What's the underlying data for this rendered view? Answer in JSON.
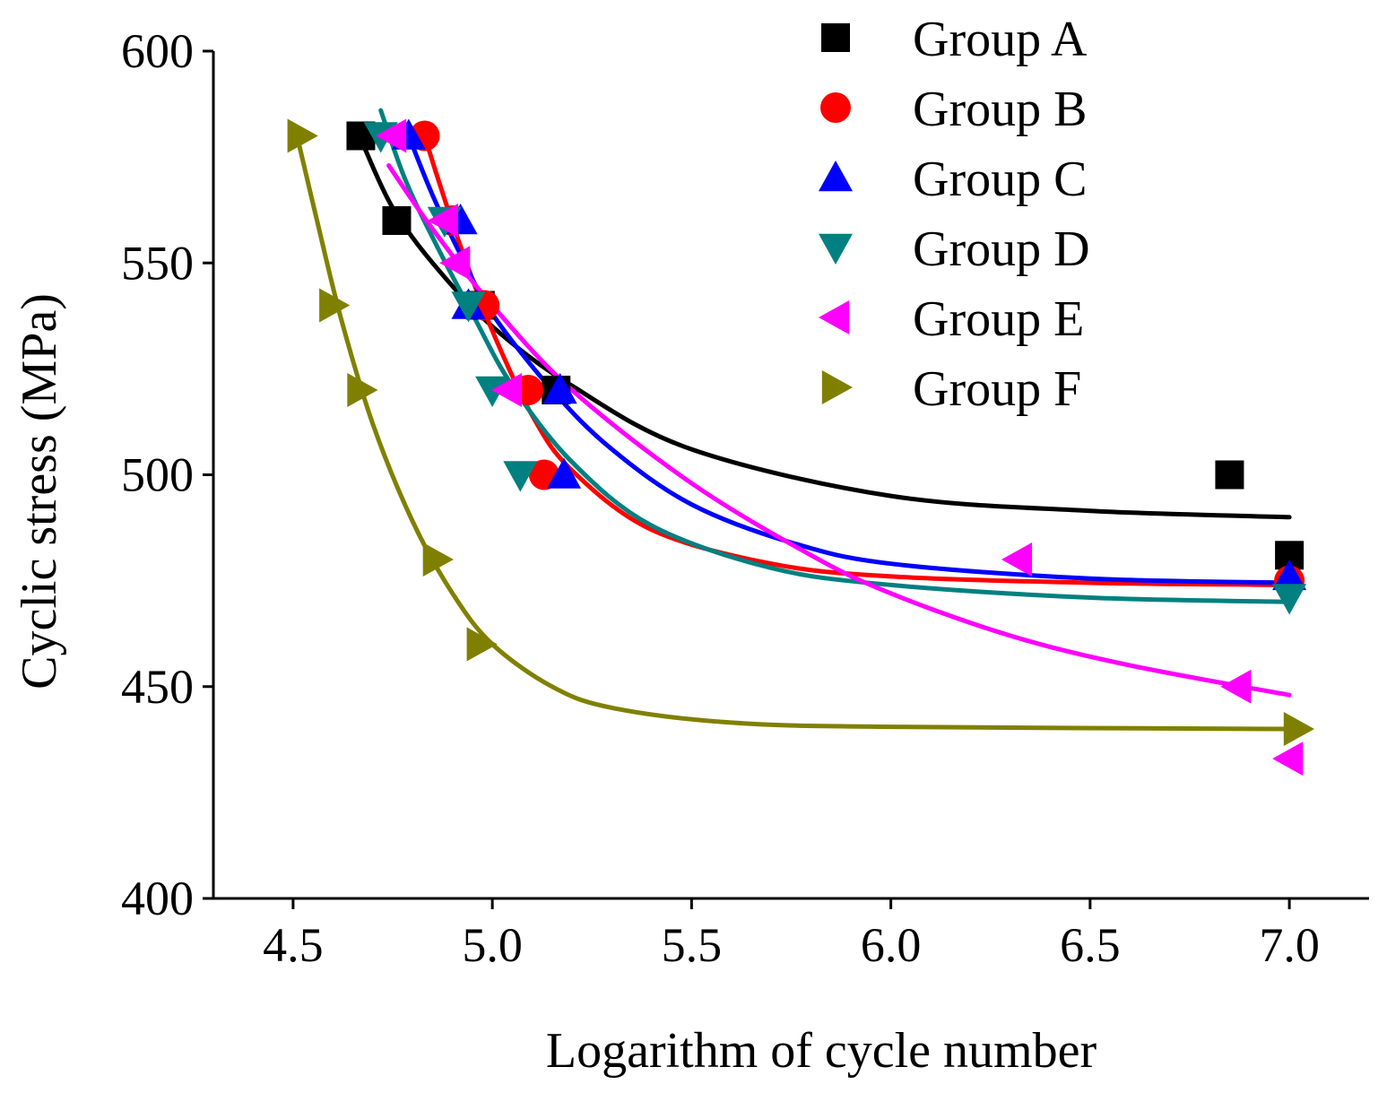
{
  "chart_data": {
    "type": "scatter",
    "title": "",
    "xlabel": "Logarithm of cycle number",
    "ylabel": "Cyclic stress (MPa)",
    "xlim": [
      4.3,
      7.2
    ],
    "ylim": [
      400,
      600
    ],
    "xticks": [
      4.5,
      5.0,
      5.5,
      6.0,
      6.5,
      7.0
    ],
    "xtick_labels": [
      "4.5",
      "5.0",
      "5.5",
      "6.0",
      "6.5",
      "7.0"
    ],
    "yticks": [
      400,
      450,
      500,
      550,
      600
    ],
    "ytick_labels": [
      "400",
      "450",
      "500",
      "550",
      "600"
    ],
    "legend_position": "top-right",
    "series": [
      {
        "name": "Group A",
        "marker": "square",
        "color": "#000000",
        "points": [
          [
            4.67,
            580
          ],
          [
            4.76,
            560
          ],
          [
            4.97,
            540
          ],
          [
            5.16,
            520
          ],
          [
            6.85,
            500
          ],
          [
            7.0,
            481
          ]
        ],
        "fit": [
          [
            4.68,
            577
          ],
          [
            4.75,
            563
          ],
          [
            4.85,
            550
          ],
          [
            5.0,
            535
          ],
          [
            5.2,
            521
          ],
          [
            5.5,
            506
          ],
          [
            6.0,
            495
          ],
          [
            6.5,
            491.5
          ],
          [
            7.0,
            490
          ]
        ]
      },
      {
        "name": "Group B",
        "marker": "circle",
        "color": "#ff0000",
        "points": [
          [
            4.83,
            580
          ],
          [
            4.9,
            560
          ],
          [
            4.98,
            540
          ],
          [
            5.09,
            520
          ],
          [
            5.13,
            500
          ],
          [
            7.0,
            475
          ]
        ],
        "fit": [
          [
            4.83,
            580
          ],
          [
            4.87,
            568
          ],
          [
            4.92,
            554
          ],
          [
            5.0,
            534
          ],
          [
            5.1,
            514
          ],
          [
            5.2,
            501
          ],
          [
            5.4,
            487
          ],
          [
            5.7,
            479
          ],
          [
            6.0,
            476
          ],
          [
            6.5,
            474.5
          ],
          [
            7.0,
            474
          ]
        ]
      },
      {
        "name": "Group C",
        "marker": "triangle-up",
        "color": "#0000ff",
        "points": [
          [
            4.79,
            580
          ],
          [
            4.92,
            560
          ],
          [
            4.94,
            540
          ],
          [
            5.17,
            520
          ],
          [
            5.18,
            500
          ],
          [
            7.0,
            476
          ]
        ],
        "fit": [
          [
            4.79,
            580
          ],
          [
            4.85,
            566
          ],
          [
            4.92,
            552
          ],
          [
            5.0,
            538
          ],
          [
            5.15,
            520
          ],
          [
            5.3,
            506
          ],
          [
            5.5,
            493
          ],
          [
            5.75,
            484
          ],
          [
            6.0,
            479
          ],
          [
            6.5,
            475.5
          ],
          [
            7.0,
            474.5
          ]
        ]
      },
      {
        "name": "Group D",
        "marker": "triangle-down",
        "color": "#008080",
        "points": [
          [
            4.72,
            580
          ],
          [
            4.88,
            560
          ],
          [
            4.94,
            540
          ],
          [
            5.0,
            520
          ],
          [
            5.07,
            500
          ],
          [
            7.0,
            471
          ]
        ],
        "fit": [
          [
            4.72,
            586
          ],
          [
            4.78,
            570
          ],
          [
            4.85,
            556
          ],
          [
            4.95,
            538
          ],
          [
            5.05,
            521
          ],
          [
            5.2,
            503
          ],
          [
            5.4,
            488
          ],
          [
            5.7,
            478
          ],
          [
            6.0,
            474
          ],
          [
            6.5,
            471
          ],
          [
            7.0,
            470
          ]
        ]
      },
      {
        "name": "Group E",
        "marker": "triangle-left",
        "color": "#ff00ff",
        "points": [
          [
            4.75,
            580
          ],
          [
            4.88,
            560
          ],
          [
            4.91,
            550
          ],
          [
            5.04,
            520
          ],
          [
            6.32,
            480
          ],
          [
            6.87,
            450
          ],
          [
            7.0,
            433
          ]
        ],
        "fit": [
          [
            4.74,
            573
          ],
          [
            4.85,
            558
          ],
          [
            5.0,
            540
          ],
          [
            5.2,
            520
          ],
          [
            5.5,
            498
          ],
          [
            5.8,
            481
          ],
          [
            6.0,
            472
          ],
          [
            6.3,
            462
          ],
          [
            6.6,
            455
          ],
          [
            7.0,
            448
          ]
        ]
      },
      {
        "name": "Group F",
        "marker": "triangle-right",
        "color": "#808000",
        "points": [
          [
            4.52,
            580
          ],
          [
            4.6,
            540
          ],
          [
            4.67,
            520
          ],
          [
            4.86,
            480
          ],
          [
            4.97,
            460
          ],
          [
            7.02,
            440
          ]
        ],
        "fit": [
          [
            4.51,
            580
          ],
          [
            4.56,
            560
          ],
          [
            4.62,
            537
          ],
          [
            4.7,
            512
          ],
          [
            4.8,
            489
          ],
          [
            4.9,
            472
          ],
          [
            5.0,
            460
          ],
          [
            5.15,
            450
          ],
          [
            5.3,
            445
          ],
          [
            5.6,
            441.5
          ],
          [
            6.0,
            440.5
          ],
          [
            7.0,
            440
          ]
        ]
      }
    ]
  }
}
